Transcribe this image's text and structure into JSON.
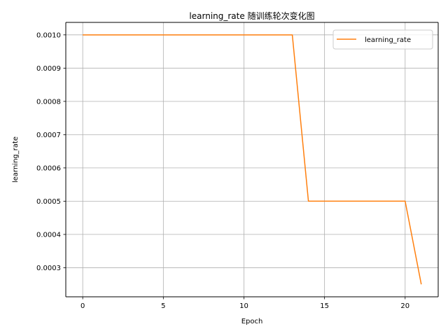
{
  "chart_data": {
    "type": "line",
    "title": "learning_rate 随训练轮次变化图",
    "xlabel": "Epoch",
    "ylabel": "learning_rate",
    "xlim": [
      -1.05,
      22.05
    ],
    "ylim": [
      0.0002125,
      0.0010375
    ],
    "x_ticks": [
      0,
      5,
      10,
      15,
      20
    ],
    "x_tick_labels": [
      "0",
      "5",
      "10",
      "15",
      "20"
    ],
    "y_ticks": [
      0.0003,
      0.0004,
      0.0005,
      0.0006,
      0.0007,
      0.0008,
      0.0009,
      0.001
    ],
    "y_tick_labels": [
      "0.0003",
      "0.0004",
      "0.0005",
      "0.0006",
      "0.0007",
      "0.0008",
      "0.0009",
      "0.0010"
    ],
    "grid": true,
    "legend_position": "top-right",
    "series": [
      {
        "name": "learning_rate",
        "color": "#ff7f0e",
        "x": [
          0,
          1,
          2,
          3,
          4,
          5,
          6,
          7,
          8,
          9,
          10,
          11,
          12,
          13,
          14,
          15,
          16,
          17,
          18,
          19,
          20,
          21
        ],
        "y": [
          0.001,
          0.001,
          0.001,
          0.001,
          0.001,
          0.001,
          0.001,
          0.001,
          0.001,
          0.001,
          0.001,
          0.001,
          0.001,
          0.001,
          0.0005,
          0.0005,
          0.0005,
          0.0005,
          0.0005,
          0.0005,
          0.0005,
          0.00025
        ]
      }
    ]
  }
}
